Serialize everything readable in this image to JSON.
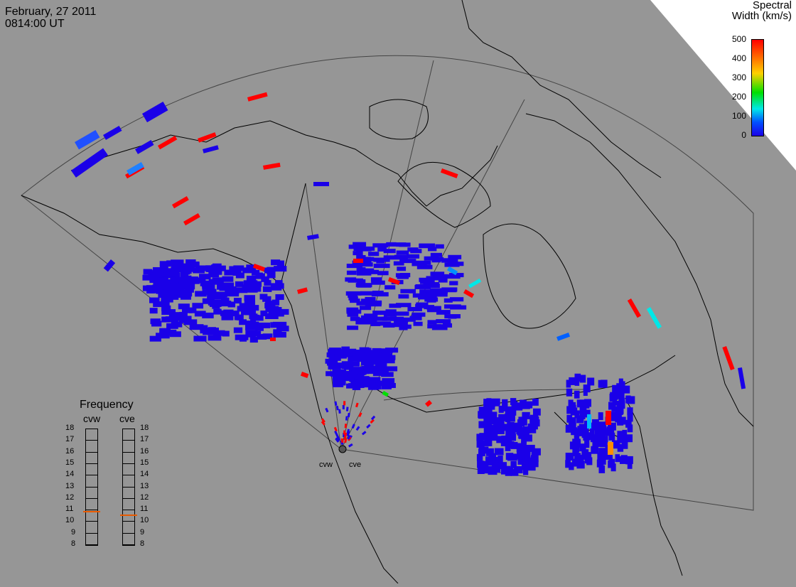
{
  "header": {
    "date": "February, 27 2011",
    "time": "0814:00 UT"
  },
  "colorbar": {
    "title_line1": "Spectral",
    "title_line2": "Width (km/s)",
    "ticks": [
      "500",
      "400",
      "300",
      "200",
      "100",
      "0"
    ],
    "range": [
      0,
      500
    ],
    "colors": [
      "#ff0000",
      "#ff8c00",
      "#ffd000",
      "#00e000",
      "#00e8e8",
      "#0050ff",
      "#1a00e8"
    ]
  },
  "frequency_panel": {
    "title": "Frequency",
    "radars": [
      {
        "name": "cvw",
        "value_mhz": 10.9
      },
      {
        "name": "cve",
        "value_mhz": 10.6
      }
    ],
    "scale": [
      "18",
      "17",
      "16",
      "15",
      "14",
      "13",
      "12",
      "11",
      "10",
      "9",
      "8"
    ],
    "marker_color": "#e85a00"
  },
  "radar_labels": [
    "cvw",
    "cve"
  ],
  "colors": {
    "background": "#969696",
    "land_outline": "#000000",
    "fov_outline": "#444444",
    "low_width": "#1a00e8",
    "high_width": "#ff0000"
  }
}
